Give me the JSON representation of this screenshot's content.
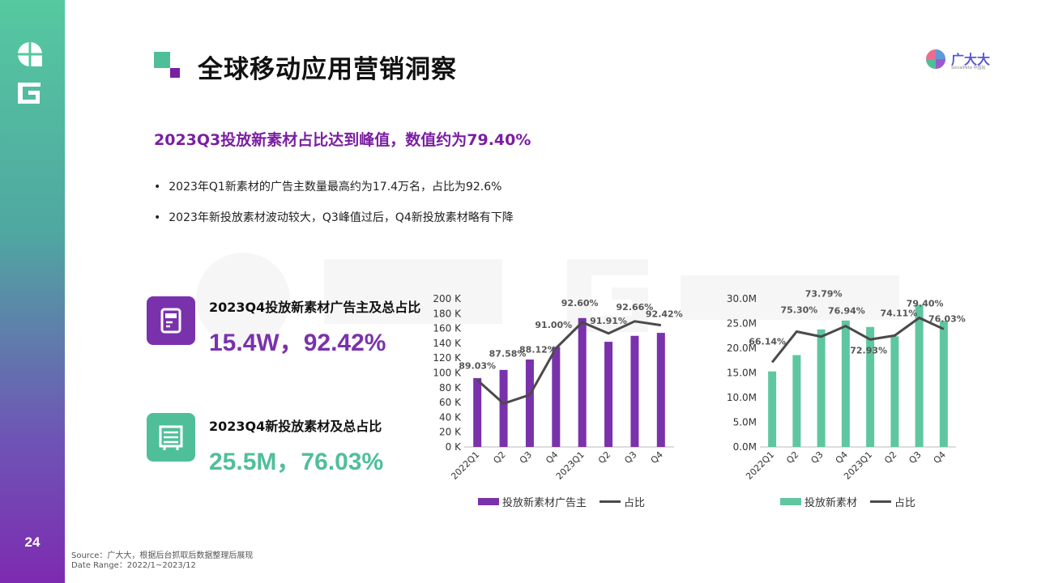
{
  "sidebar": {
    "page_number": "24"
  },
  "header": {
    "title": "全球移动应用营销洞察",
    "brand_name": "广大大",
    "brand_sub": "SocialPeta 中国站"
  },
  "headline": "2023Q3投放新素材占比达到峰值，数值约为79.40%",
  "bullets": [
    "2023年Q1新素材的广告主数量最高约为17.4万名，占比为92.6%",
    "2023年新投放素材波动较大，Q3峰值过后，Q4新投放素材略有下降"
  ],
  "cards": [
    {
      "label": "2023Q4投放新素材广告主及总占比",
      "value": "15.4W，92.42%",
      "icon": "tablet-pen-icon",
      "color": "#7a32ac"
    },
    {
      "label": "2023Q4新投放素材及总占比",
      "value": "25.5M，76.03%",
      "icon": "building-list-icon",
      "color": "#4fbf99"
    }
  ],
  "colors": {
    "purple": "#7a32ac",
    "green": "#5ec7a0",
    "line": "#4a4a4a",
    "headline": "#7a1fa2"
  },
  "chart_data": [
    {
      "type": "bar",
      "categories": [
        "2022Q1",
        "Q2",
        "Q3",
        "Q4",
        "2023Q1",
        "Q2",
        "Q3",
        "Q4"
      ],
      "series": [
        {
          "name": "投放新素材广告主",
          "values": [
            93,
            104,
            118,
            135,
            174,
            142,
            150,
            154
          ]
        },
        {
          "name": "占比",
          "type": "line",
          "values": [
            89.03,
            87.58,
            88.12,
            91.0,
            92.6,
            91.91,
            92.66,
            92.42
          ],
          "labels": [
            "89.03%",
            "87.58%",
            "88.12%",
            "91.00%",
            "92.60%",
            "91.91%",
            "92.66%",
            "92.42%"
          ]
        }
      ],
      "yticks": [
        "0 K",
        "20 K",
        "40 K",
        "60 K",
        "80 K",
        "100 K",
        "120 K",
        "140 K",
        "160 K",
        "180 K",
        "200 K"
      ],
      "ylim": [
        0,
        200
      ],
      "legend_position": "bottom"
    },
    {
      "type": "bar",
      "categories": [
        "2022Q1",
        "Q2",
        "Q3",
        "Q4",
        "2023Q1",
        "Q2",
        "Q3",
        "Q4"
      ],
      "series": [
        {
          "name": "投放新素材",
          "values": [
            15.3,
            18.6,
            23.8,
            25.6,
            24.3,
            22.4,
            28.8,
            25.5
          ]
        },
        {
          "name": "占比",
          "type": "line",
          "values": [
            66.14,
            75.3,
            73.79,
            76.94,
            72.93,
            74.11,
            79.4,
            76.03
          ],
          "labels": [
            "66.14%",
            "75.30%",
            "73.79%",
            "76.94%",
            "72.93%",
            "74.11%",
            "79.40%",
            "76.03%"
          ]
        }
      ],
      "yticks": [
        "0.0M",
        "5.0M",
        "10.0M",
        "15.0M",
        "20.0M",
        "25.0M",
        "30.0M"
      ],
      "ylim": [
        0,
        30
      ],
      "legend_position": "bottom"
    }
  ],
  "source": {
    "line1": "Source：广大大，根据后台抓取后数据整理后展现",
    "line2": "Date Range：2022/1~2023/12"
  }
}
